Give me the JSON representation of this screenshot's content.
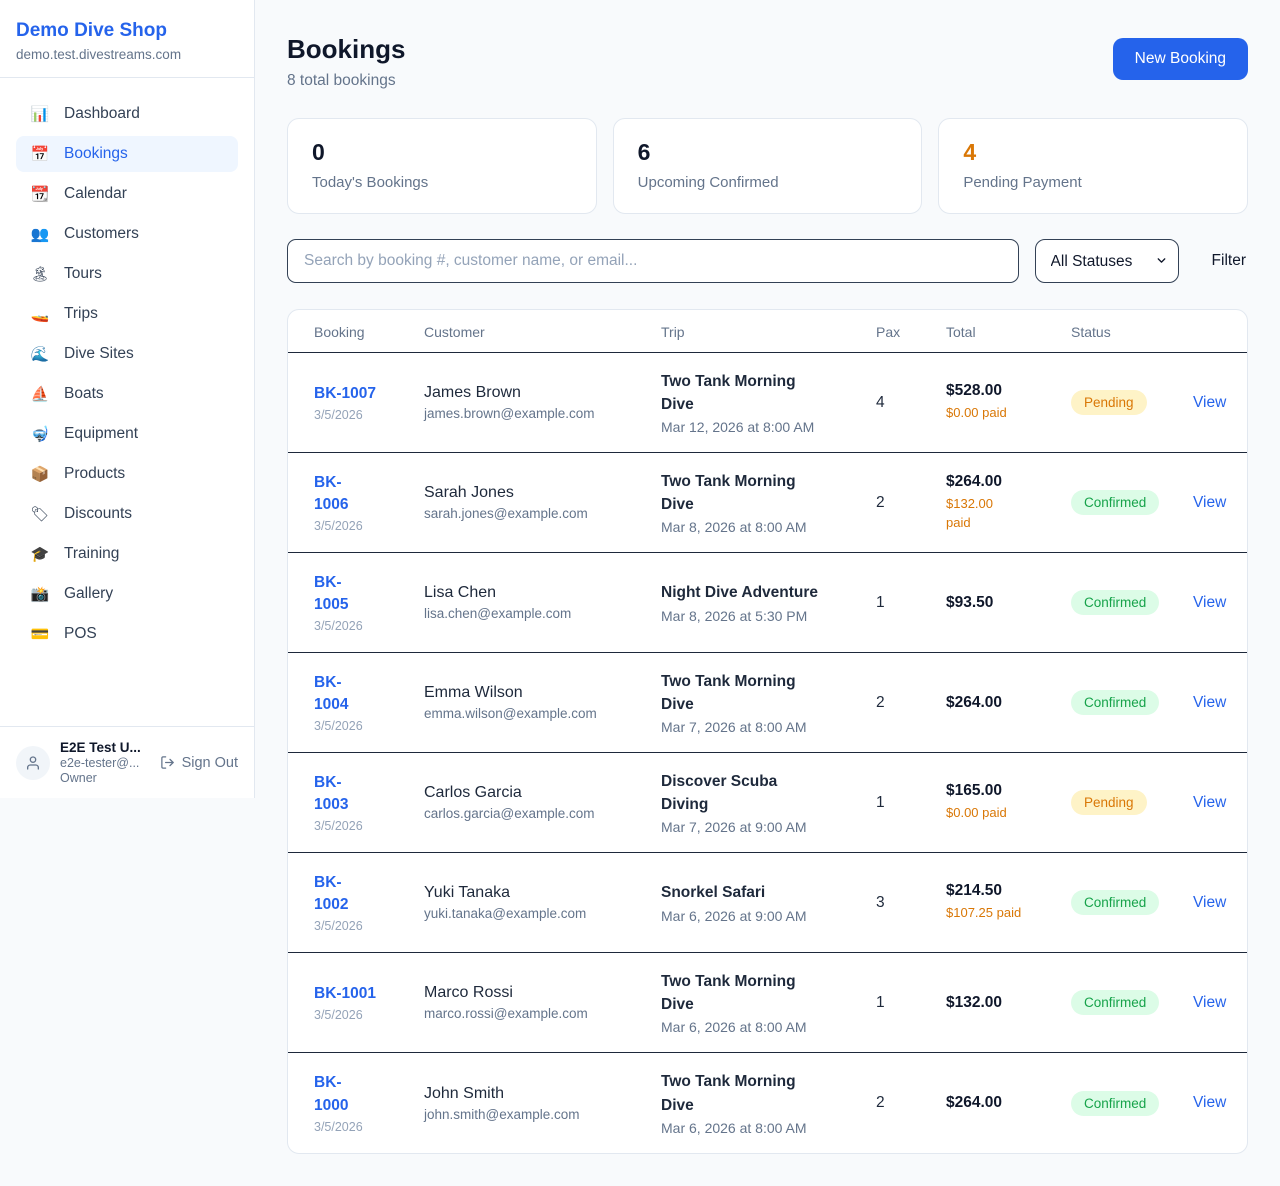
{
  "sidebar": {
    "shop_name": "Demo Dive Shop",
    "domain": "demo.test.divestreams.com",
    "items": [
      {
        "icon": "📊",
        "icon_name": "bar-chart-icon",
        "label": "Dashboard",
        "active": false
      },
      {
        "icon": "📅",
        "icon_name": "calendar-icon",
        "label": "Bookings",
        "active": true
      },
      {
        "icon": "📆",
        "icon_name": "tear-calendar-icon",
        "label": "Calendar",
        "active": false
      },
      {
        "icon": "👥",
        "icon_name": "people-icon",
        "label": "Customers",
        "active": false
      },
      {
        "icon": "🏝",
        "icon_name": "island-icon",
        "label": "Tours",
        "active": false
      },
      {
        "icon": "🚤",
        "icon_name": "speedboat-icon",
        "label": "Trips",
        "active": false
      },
      {
        "icon": "🌊",
        "icon_name": "wave-icon",
        "label": "Dive Sites",
        "active": false
      },
      {
        "icon": "⛵",
        "icon_name": "sailboat-icon",
        "label": "Boats",
        "active": false
      },
      {
        "icon": "🤿",
        "icon_name": "dive-mask-icon",
        "label": "Equipment",
        "active": false
      },
      {
        "icon": "📦",
        "icon_name": "package-icon",
        "label": "Products",
        "active": false
      },
      {
        "icon": "🏷",
        "icon_name": "tag-icon",
        "label": "Discounts",
        "active": false
      },
      {
        "icon": "🎓",
        "icon_name": "graduation-cap-icon",
        "label": "Training",
        "active": false
      },
      {
        "icon": "📸",
        "icon_name": "camera-icon",
        "label": "Gallery",
        "active": false
      },
      {
        "icon": "💳",
        "icon_name": "credit-card-icon",
        "label": "POS",
        "active": false
      }
    ],
    "user": {
      "name": "E2E Test U...",
      "email": "e2e-tester@...",
      "role": "Owner",
      "sign_out_label": "Sign Out"
    }
  },
  "header": {
    "title": "Bookings",
    "subtitle": "8 total bookings",
    "new_booking_label": "New Booking"
  },
  "stats": [
    {
      "value": "0",
      "label": "Today's Bookings",
      "accent": false
    },
    {
      "value": "6",
      "label": "Upcoming Confirmed",
      "accent": false
    },
    {
      "value": "4",
      "label": "Pending Payment",
      "accent": true
    }
  ],
  "controls": {
    "search_placeholder": "Search by booking #, customer name, or email...",
    "status_selected": "All Statuses",
    "filter_label": "Filter"
  },
  "table": {
    "columns": [
      "Booking",
      "Customer",
      "Trip",
      "Pax",
      "Total",
      "Status"
    ],
    "rows": [
      {
        "id": "BK-1007",
        "date": "3/5/2026",
        "customer": "James Brown",
        "email": "james.brown@example.com",
        "trip": "Two Tank Morning Dive",
        "trip_time": "Mar 12, 2026 at 8:00 AM",
        "pax": "4",
        "total": "$528.00",
        "paid": "$0.00 paid",
        "status": "Pending",
        "status_type": "pending",
        "view": "View",
        "id_wrapped": false,
        "trip_wrapped": true,
        "paid_wrapped": false
      },
      {
        "id": "BK-1006",
        "date": "3/5/2026",
        "customer": "Sarah Jones",
        "email": "sarah.jones@example.com",
        "trip": "Two Tank Morning Dive",
        "trip_time": "Mar 8, 2026 at 8:00 AM",
        "pax": "2",
        "total": "$264.00",
        "paid": "$132.00 paid",
        "status": "Confirmed",
        "status_type": "confirmed",
        "view": "View",
        "id_wrapped": true,
        "trip_wrapped": true,
        "paid_wrapped": true
      },
      {
        "id": "BK-1005",
        "date": "3/5/2026",
        "customer": "Lisa Chen",
        "email": "lisa.chen@example.com",
        "trip": "Night Dive Adventure",
        "trip_time": "Mar 8, 2026 at 5:30 PM",
        "pax": "1",
        "total": "$93.50",
        "paid": "",
        "status": "Confirmed",
        "status_type": "confirmed",
        "view": "View",
        "id_wrapped": true,
        "trip_wrapped": false,
        "paid_wrapped": false
      },
      {
        "id": "BK-1004",
        "date": "3/5/2026",
        "customer": "Emma Wilson",
        "email": "emma.wilson@example.com",
        "trip": "Two Tank Morning Dive",
        "trip_time": "Mar 7, 2026 at 8:00 AM",
        "pax": "2",
        "total": "$264.00",
        "paid": "",
        "status": "Confirmed",
        "status_type": "confirmed",
        "view": "View",
        "id_wrapped": true,
        "trip_wrapped": true,
        "paid_wrapped": false
      },
      {
        "id": "BK-1003",
        "date": "3/5/2026",
        "customer": "Carlos Garcia",
        "email": "carlos.garcia@example.com",
        "trip": "Discover Scuba Diving",
        "trip_time": "Mar 7, 2026 at 9:00 AM",
        "pax": "1",
        "total": "$165.00",
        "paid": "$0.00 paid",
        "status": "Pending",
        "status_type": "pending",
        "view": "View",
        "id_wrapped": true,
        "trip_wrapped": true,
        "paid_wrapped": false
      },
      {
        "id": "BK-1002",
        "date": "3/5/2026",
        "customer": "Yuki Tanaka",
        "email": "yuki.tanaka@example.com",
        "trip": "Snorkel Safari",
        "trip_time": "Mar 6, 2026 at 9:00 AM",
        "pax": "3",
        "total": "$214.50",
        "paid": "$107.25 paid",
        "status": "Confirmed",
        "status_type": "confirmed",
        "view": "View",
        "id_wrapped": true,
        "trip_wrapped": false,
        "paid_wrapped": false
      },
      {
        "id": "BK-1001",
        "date": "3/5/2026",
        "customer": "Marco Rossi",
        "email": "marco.rossi@example.com",
        "trip": "Two Tank Morning Dive",
        "trip_time": "Mar 6, 2026 at 8:00 AM",
        "pax": "1",
        "total": "$132.00",
        "paid": "",
        "status": "Confirmed",
        "status_type": "confirmed",
        "view": "View",
        "id_wrapped": false,
        "trip_wrapped": true,
        "paid_wrapped": false
      },
      {
        "id": "BK-1000",
        "date": "3/5/2026",
        "customer": "John Smith",
        "email": "john.smith@example.com",
        "trip": "Two Tank Morning Dive",
        "trip_time": "Mar 6, 2026 at 8:00 AM",
        "pax": "2",
        "total": "$264.00",
        "paid": "",
        "status": "Confirmed",
        "status_type": "confirmed",
        "view": "View",
        "id_wrapped": true,
        "trip_wrapped": true,
        "paid_wrapped": false
      }
    ]
  },
  "colors": {
    "brand_blue": "#2563eb",
    "pending_text": "#d97706",
    "pending_bg": "#fef3c7",
    "confirmed_text": "#16a34a",
    "confirmed_bg": "#dcfce7",
    "dark_border": "#1e293b",
    "light_border": "#e2e8f0",
    "page_bg": "#f8fafc"
  }
}
